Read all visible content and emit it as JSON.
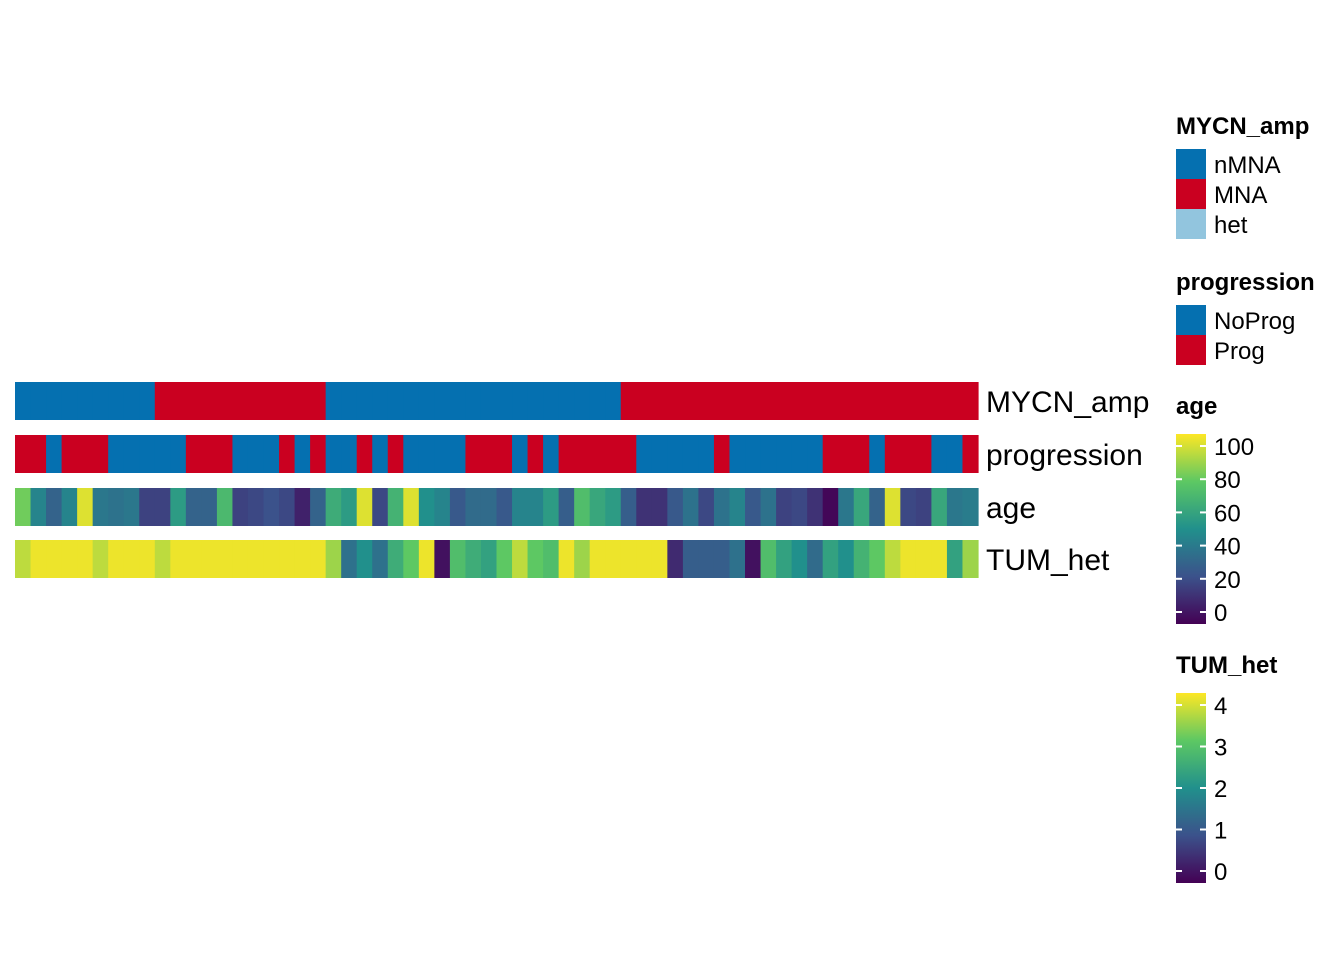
{
  "chart_data": {
    "type": "heatmap",
    "n_samples": 62,
    "colors": {
      "blue": "#0570B0",
      "red": "#CA0020",
      "lightblue": "#92C5DE"
    },
    "viridis": [
      "#440154",
      "#3B528B",
      "#21908C",
      "#5DC863",
      "#FDE725"
    ],
    "tracks": [
      {
        "name": "MYCN_amp",
        "kind": "categorical",
        "values": [
          "nMNA",
          "nMNA",
          "nMNA",
          "nMNA",
          "nMNA",
          "nMNA",
          "nMNA",
          "nMNA",
          "nMNA",
          "MNA",
          "MNA",
          "MNA",
          "MNA",
          "MNA",
          "MNA",
          "MNA",
          "MNA",
          "MNA",
          "MNA",
          "MNA",
          "nMNA",
          "nMNA",
          "nMNA",
          "nMNA",
          "nMNA",
          "nMNA",
          "nMNA",
          "nMNA",
          "nMNA",
          "nMNA",
          "nMNA",
          "nMNA",
          "nMNA",
          "nMNA",
          "nMNA",
          "nMNA",
          "nMNA",
          "nMNA",
          "nMNA",
          "MNA",
          "MNA",
          "MNA",
          "MNA",
          "MNA",
          "MNA",
          "MNA",
          "MNA",
          "MNA",
          "MNA",
          "MNA",
          "MNA",
          "MNA",
          "MNA",
          "MNA",
          "MNA",
          "MNA",
          "MNA",
          "MNA",
          "MNA",
          "MNA",
          "MNA",
          "MNA"
        ]
      },
      {
        "name": "progression",
        "kind": "categorical",
        "values": [
          "Prog",
          "Prog",
          "NoProg",
          "Prog",
          "Prog",
          "Prog",
          "NoProg",
          "NoProg",
          "NoProg",
          "NoProg",
          "NoProg",
          "Prog",
          "Prog",
          "Prog",
          "NoProg",
          "NoProg",
          "NoProg",
          "Prog",
          "NoProg",
          "Prog",
          "NoProg",
          "NoProg",
          "Prog",
          "NoProg",
          "Prog",
          "NoProg",
          "NoProg",
          "NoProg",
          "NoProg",
          "Prog",
          "Prog",
          "Prog",
          "NoProg",
          "Prog",
          "NoProg",
          "Prog",
          "Prog",
          "Prog",
          "Prog",
          "Prog",
          "NoProg",
          "NoProg",
          "NoProg",
          "NoProg",
          "NoProg",
          "Prog",
          "NoProg",
          "NoProg",
          "NoProg",
          "NoProg",
          "NoProg",
          "NoProg",
          "Prog",
          "Prog",
          "Prog",
          "NoProg",
          "Prog",
          "Prog",
          "Prog",
          "NoProg",
          "NoProg",
          "Prog"
        ]
      },
      {
        "name": "age",
        "kind": "continuous",
        "range": [
          0,
          100
        ],
        "values": [
          78,
          45,
          32,
          45,
          95,
          40,
          38,
          40,
          20,
          20,
          55,
          32,
          32,
          68,
          20,
          22,
          25,
          22,
          10,
          32,
          62,
          55,
          95,
          22,
          65,
          95,
          50,
          45,
          28,
          35,
          35,
          28,
          45,
          45,
          55,
          30,
          70,
          60,
          55,
          30,
          15,
          15,
          28,
          38,
          22,
          38,
          45,
          28,
          38,
          20,
          22,
          15,
          2,
          40,
          60,
          32,
          95,
          22,
          20,
          60,
          40,
          42
        ]
      },
      {
        "name": "TUM_het",
        "kind": "continuous",
        "range": [
          0,
          4
        ],
        "values": [
          3.6,
          3.9,
          3.9,
          3.9,
          3.9,
          3.6,
          3.9,
          3.9,
          3.9,
          3.6,
          3.9,
          3.9,
          3.9,
          3.9,
          3.9,
          3.9,
          3.9,
          3.9,
          3.9,
          3.9,
          3.4,
          1.5,
          2.0,
          1.5,
          2.5,
          3.0,
          3.9,
          0.2,
          2.8,
          2.5,
          2.3,
          3.0,
          3.6,
          3.0,
          2.8,
          3.9,
          3.4,
          3.9,
          3.9,
          3.9,
          3.9,
          3.9,
          0.5,
          1.2,
          1.2,
          1.2,
          1.5,
          0.2,
          2.8,
          2.3,
          2.0,
          1.4,
          2.3,
          2.0,
          2.6,
          3.0,
          3.6,
          3.9,
          3.9,
          3.9,
          2.3,
          3.4
        ]
      }
    ],
    "legends": [
      {
        "title": "MYCN_amp",
        "kind": "categorical",
        "items": [
          {
            "label": "nMNA",
            "color": "#0570B0"
          },
          {
            "label": "MNA",
            "color": "#CA0020"
          },
          {
            "label": "het",
            "color": "#92C5DE"
          }
        ]
      },
      {
        "title": "progression",
        "kind": "categorical",
        "items": [
          {
            "label": "NoProg",
            "color": "#0570B0"
          },
          {
            "label": "Prog",
            "color": "#CA0020"
          }
        ]
      },
      {
        "title": "age",
        "kind": "continuous",
        "range": [
          0,
          100
        ],
        "ticks": [
          {
            "value": 0,
            "label": "0"
          },
          {
            "value": 20,
            "label": "20"
          },
          {
            "value": 40,
            "label": "40"
          },
          {
            "value": 60,
            "label": "60"
          },
          {
            "value": 80,
            "label": "80"
          },
          {
            "value": 100,
            "label": "100"
          }
        ]
      },
      {
        "title": "TUM_het",
        "kind": "continuous",
        "range": [
          0,
          4
        ],
        "ticks": [
          {
            "value": 0,
            "label": "0"
          },
          {
            "value": 1,
            "label": "1"
          },
          {
            "value": 2,
            "label": "2"
          },
          {
            "value": 3,
            "label": "3"
          },
          {
            "value": 4,
            "label": "4"
          }
        ]
      }
    ]
  }
}
